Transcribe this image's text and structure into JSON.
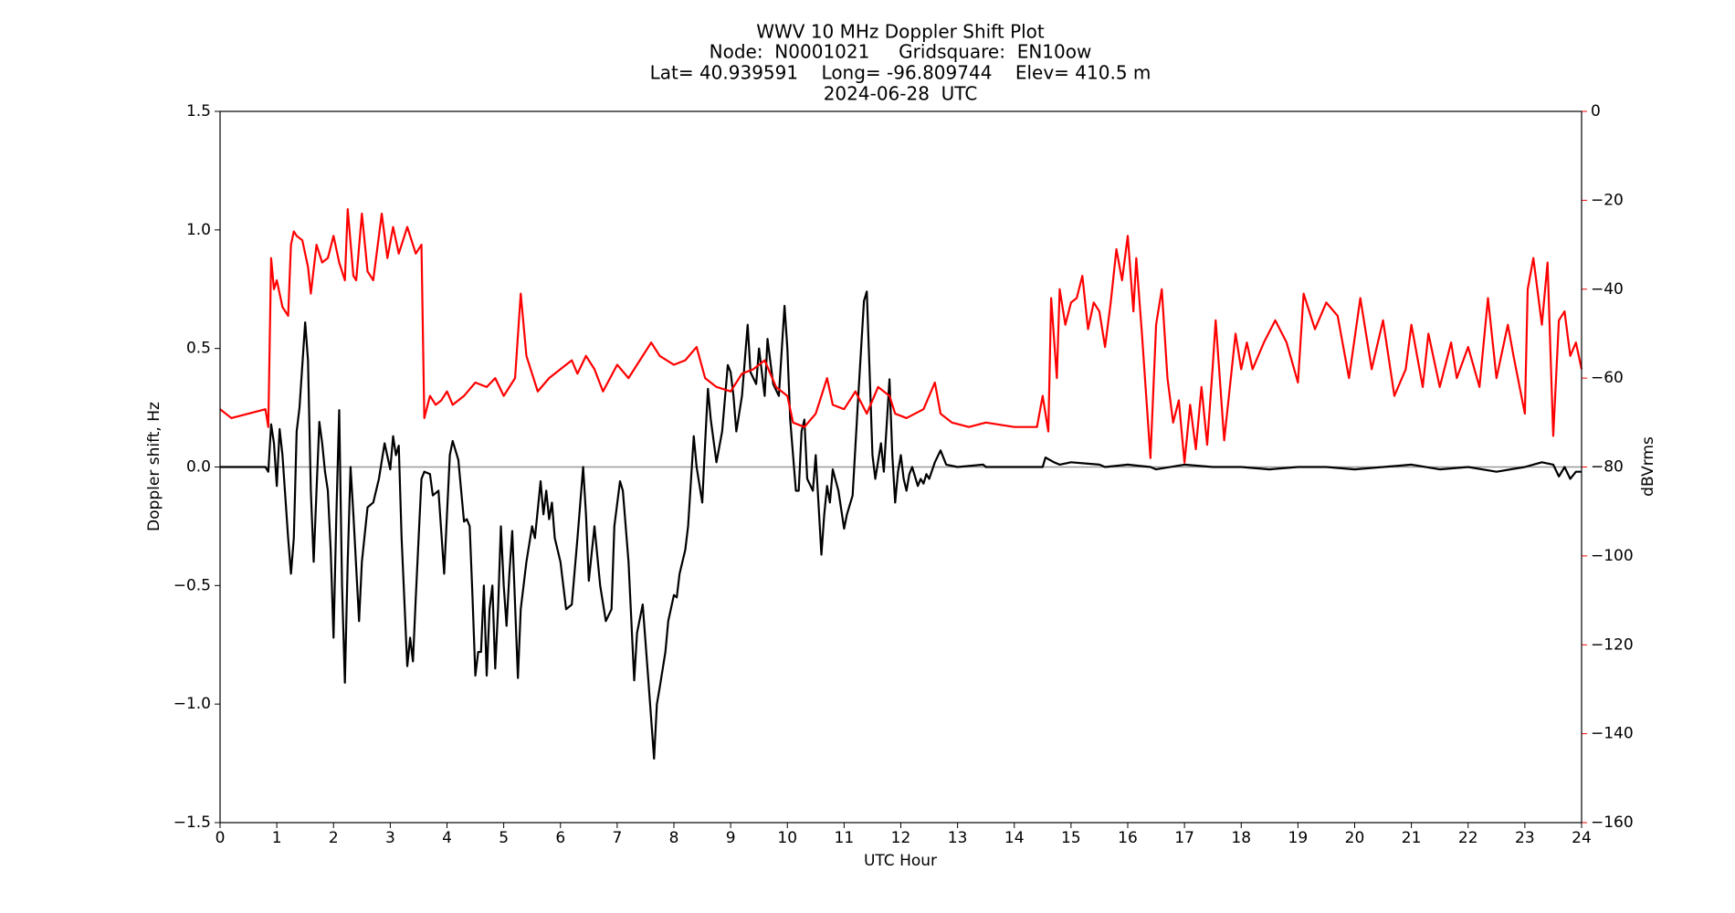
{
  "chart_data": {
    "type": "line",
    "title": [
      "WWV 10 MHz Doppler Shift Plot",
      "Node:  N0001021     Gridsquare:  EN10ow",
      "Lat= 40.939591    Long= -96.809744    Elev= 410.5 m",
      "2024-06-28  UTC"
    ],
    "x_label": "UTC Hour",
    "y_label": "Doppler shift, Hz",
    "y2_label": "dBVrms",
    "y2_color": "#ff0000",
    "reference_line_color": "#999999",
    "xlim": [
      0,
      24
    ],
    "xticks": [
      0,
      1,
      2,
      3,
      4,
      5,
      6,
      7,
      8,
      9,
      10,
      11,
      12,
      13,
      14,
      15,
      16,
      17,
      18,
      19,
      20,
      21,
      22,
      23,
      24
    ],
    "ylim": [
      -1.5,
      1.5
    ],
    "yticks": [
      {
        "value": -1.5,
        "label": "−1.5"
      },
      {
        "value": -1,
        "label": "−1.0"
      },
      {
        "value": -0.5,
        "label": "−0.5"
      },
      {
        "value": 0,
        "label": "0.0"
      },
      0.5,
      {
        "value": 1,
        "label": "1.0"
      },
      1.5
    ],
    "y2lim": [
      -160,
      0
    ],
    "y2ticks": [
      {
        "value": -160,
        "label": "−160"
      },
      {
        "value": -140,
        "label": "−140"
      },
      {
        "value": -120,
        "label": "−120"
      },
      {
        "value": -100,
        "label": "−100"
      },
      {
        "value": -80,
        "label": "−80"
      },
      {
        "value": -60,
        "label": "−60"
      },
      {
        "value": -40,
        "label": "−40"
      },
      {
        "value": -20,
        "label": "−20"
      },
      0
    ],
    "series": [
      {
        "color": "#000000",
        "x": [
          0,
          0.5,
          0.8,
          0.85,
          0.9,
          0.95,
          1.0,
          1.05,
          1.1,
          1.2,
          1.25,
          1.3,
          1.35,
          1.4,
          1.5,
          1.55,
          1.6,
          1.65,
          1.7,
          1.75,
          1.8,
          1.85,
          1.9,
          1.95,
          2.0,
          2.05,
          2.1,
          2.15,
          2.2,
          2.25,
          2.3,
          2.35,
          2.45,
          2.5,
          2.6,
          2.7,
          2.8,
          2.9,
          3.0,
          3.05,
          3.1,
          3.15,
          3.2,
          3.3,
          3.35,
          3.4,
          3.45,
          3.55,
          3.6,
          3.7,
          3.75,
          3.85,
          3.95,
          4.0,
          4.05,
          4.1,
          4.2,
          4.25,
          4.3,
          4.35,
          4.4,
          4.45,
          4.5,
          4.55,
          4.6,
          4.65,
          4.7,
          4.75,
          4.8,
          4.85,
          4.9,
          4.95,
          5.0,
          5.05,
          5.1,
          5.15,
          5.25,
          5.3,
          5.4,
          5.5,
          5.55,
          5.65,
          5.7,
          5.75,
          5.8,
          5.85,
          5.9,
          6.0,
          6.1,
          6.2,
          6.3,
          6.4,
          6.45,
          6.5,
          6.6,
          6.7,
          6.8,
          6.9,
          6.95,
          7.05,
          7.1,
          7.2,
          7.3,
          7.35,
          7.45,
          7.55,
          7.65,
          7.7,
          7.75,
          7.85,
          7.9,
          8.0,
          8.05,
          8.1,
          8.2,
          8.25,
          8.35,
          8.4,
          8.5,
          8.55,
          8.6,
          8.65,
          8.75,
          8.85,
          8.95,
          9.0,
          9.05,
          9.1,
          9.2,
          9.3,
          9.35,
          9.45,
          9.5,
          9.6,
          9.65,
          9.75,
          9.85,
          9.95,
          10.0,
          10.05,
          10.15,
          10.2,
          10.25,
          10.3,
          10.35,
          10.45,
          10.5,
          10.6,
          10.65,
          10.7,
          10.75,
          10.8,
          10.9,
          11.0,
          11.05,
          11.15,
          11.25,
          11.35,
          11.4,
          11.45,
          11.5,
          11.55,
          11.65,
          11.7,
          11.8,
          11.85,
          11.9,
          11.95,
          12.0,
          12.05,
          12.1,
          12.15,
          12.2,
          12.3,
          12.35,
          12.4,
          12.45,
          12.5,
          12.6,
          12.7,
          12.8,
          13.0,
          13.45,
          13.5,
          14.5,
          14.55,
          14.7,
          14.8,
          15,
          15.5,
          15.6,
          16,
          16.4,
          16.5,
          17,
          17.5,
          18,
          18.5,
          19,
          19.5,
          20,
          20.5,
          21,
          21.5,
          22,
          22.5,
          23,
          23.3,
          23.5,
          23.6,
          23.7,
          23.8,
          23.9,
          24
        ],
        "values": [
          0,
          0,
          0,
          -0.02,
          0.18,
          0.1,
          -0.08,
          0.16,
          0.05,
          -0.3,
          -0.45,
          -0.3,
          0.15,
          0.25,
          0.61,
          0.45,
          -0.1,
          -0.4,
          -0.1,
          0.19,
          0.1,
          -0.02,
          -0.1,
          -0.35,
          -0.72,
          -0.2,
          0.24,
          -0.5,
          -0.91,
          -0.4,
          0,
          -0.2,
          -0.65,
          -0.4,
          -0.17,
          -0.15,
          -0.05,
          0.1,
          -0.01,
          0.13,
          0.05,
          0.09,
          -0.3,
          -0.84,
          -0.72,
          -0.82,
          -0.55,
          -0.05,
          -0.02,
          -0.03,
          -0.12,
          -0.1,
          -0.45,
          -0.2,
          0.05,
          0.11,
          0.03,
          -0.1,
          -0.23,
          -0.22,
          -0.25,
          -0.55,
          -0.88,
          -0.78,
          -0.78,
          -0.5,
          -0.88,
          -0.6,
          -0.5,
          -0.85,
          -0.6,
          -0.25,
          -0.5,
          -0.67,
          -0.45,
          -0.27,
          -0.89,
          -0.6,
          -0.4,
          -0.25,
          -0.3,
          -0.06,
          -0.2,
          -0.1,
          -0.22,
          -0.15,
          -0.3,
          -0.4,
          -0.6,
          -0.58,
          -0.3,
          0,
          -0.2,
          -0.48,
          -0.25,
          -0.5,
          -0.65,
          -0.6,
          -0.25,
          -0.06,
          -0.1,
          -0.4,
          -0.9,
          -0.7,
          -0.58,
          -0.9,
          -1.23,
          -1.0,
          -0.93,
          -0.78,
          -0.65,
          -0.54,
          -0.55,
          -0.45,
          -0.35,
          -0.25,
          0.13,
          0,
          -0.15,
          0.1,
          0.33,
          0.2,
          0.02,
          0.15,
          0.43,
          0.4,
          0.3,
          0.15,
          0.3,
          0.6,
          0.4,
          0.35,
          0.5,
          0.3,
          0.54,
          0.35,
          0.3,
          0.68,
          0.5,
          0.2,
          -0.1,
          -0.1,
          0.15,
          0.2,
          -0.05,
          -0.1,
          0.05,
          -0.37,
          -0.2,
          -0.08,
          -0.15,
          -0.01,
          -0.1,
          -0.26,
          -0.2,
          -0.12,
          0.3,
          0.7,
          0.74,
          0.4,
          0.05,
          -0.05,
          0.1,
          -0.02,
          0.37,
          0.05,
          -0.15,
          -0.02,
          0.05,
          -0.05,
          -0.1,
          -0.03,
          0,
          -0.08,
          -0.05,
          -0.07,
          -0.03,
          -0.05,
          0.02,
          0.07,
          0.01,
          0,
          0.01,
          0,
          0,
          0.04,
          0.02,
          0.01,
          0.02,
          0.01,
          0,
          0.01,
          0,
          -0.01,
          0.01,
          0,
          0,
          -0.01,
          0,
          0,
          -0.01,
          0,
          0.01,
          -0.01,
          0,
          -0.02,
          0,
          0.02,
          0.01,
          -0.04,
          0,
          -0.05,
          -0.02,
          -0.02
        ]
      },
      {
        "color": "#ff0000",
        "axis": "y2",
        "x": [
          0,
          0.2,
          0.5,
          0.8,
          0.85,
          0.9,
          0.95,
          1.0,
          1.1,
          1.2,
          1.25,
          1.3,
          1.35,
          1.45,
          1.55,
          1.6,
          1.7,
          1.8,
          1.9,
          2.0,
          2.1,
          2.2,
          2.25,
          2.35,
          2.4,
          2.5,
          2.6,
          2.7,
          2.85,
          2.95,
          3.05,
          3.15,
          3.3,
          3.45,
          3.55,
          3.6,
          3.7,
          3.8,
          3.9,
          4.0,
          4.1,
          4.3,
          4.5,
          4.7,
          4.85,
          5.0,
          5.2,
          5.3,
          5.4,
          5.6,
          5.8,
          6.0,
          6.2,
          6.3,
          6.45,
          6.6,
          6.75,
          7.0,
          7.2,
          7.4,
          7.6,
          7.75,
          8.0,
          8.2,
          8.4,
          8.55,
          8.75,
          9.0,
          9.2,
          9.4,
          9.6,
          9.8,
          10.0,
          10.1,
          10.3,
          10.5,
          10.7,
          10.8,
          11.0,
          11.2,
          11.4,
          11.6,
          11.8,
          11.9,
          12.1,
          12.4,
          12.6,
          12.7,
          12.9,
          13.2,
          13.5,
          14.0,
          14.4,
          14.5,
          14.6,
          14.65,
          14.75,
          14.8,
          14.9,
          15.0,
          15.1,
          15.2,
          15.3,
          15.4,
          15.5,
          15.6,
          15.7,
          15.8,
          15.9,
          16.0,
          16.1,
          16.15,
          16.25,
          16.4,
          16.5,
          16.6,
          16.7,
          16.8,
          16.9,
          17.0,
          17.1,
          17.2,
          17.3,
          17.4,
          17.5,
          17.55,
          17.7,
          17.8,
          17.9,
          18.0,
          18.1,
          18.2,
          18.4,
          18.6,
          18.8,
          19.0,
          19.1,
          19.3,
          19.5,
          19.7,
          19.9,
          20.1,
          20.3,
          20.5,
          20.7,
          20.9,
          21.0,
          21.2,
          21.3,
          21.5,
          21.7,
          21.8,
          22.0,
          22.2,
          22.35,
          22.5,
          22.7,
          22.8,
          23.0,
          23.05,
          23.15,
          23.3,
          23.4,
          23.5,
          23.6,
          23.7,
          23.8,
          23.9,
          24.0
        ],
        "values": [
          -67,
          -69,
          -68,
          -67,
          -71,
          -33,
          -40,
          -38,
          -44,
          -46,
          -30,
          -27,
          -28,
          -29,
          -35,
          -41,
          -30,
          -34,
          -33,
          -28,
          -34,
          -38,
          -22,
          -37,
          -38,
          -23,
          -36,
          -38,
          -23,
          -33,
          -26,
          -32,
          -26,
          -32,
          -30,
          -69,
          -64,
          -66,
          -65,
          -63,
          -66,
          -64,
          -61,
          -62,
          -60,
          -64,
          -60,
          -41,
          -55,
          -63,
          -60,
          -58,
          -56,
          -59,
          -55,
          -58,
          -63,
          -57,
          -60,
          -56,
          -52,
          -55,
          -57,
          -56,
          -53,
          -60,
          -62,
          -63,
          -59,
          -58,
          -56,
          -62,
          -64,
          -70,
          -71,
          -68,
          -60,
          -66,
          -67,
          -63,
          -68,
          -62,
          -64,
          -68,
          -69,
          -67,
          -61,
          -68,
          -70,
          -71,
          -70,
          -71,
          -71,
          -64,
          -72,
          -42,
          -60,
          -40,
          -48,
          -43,
          -42,
          -37,
          -49,
          -43,
          -45,
          -53,
          -43,
          -31,
          -38,
          -28,
          -45,
          -33,
          -50,
          -78,
          -48,
          -40,
          -60,
          -70,
          -65,
          -79,
          -66,
          -76,
          -62,
          -75,
          -57,
          -47,
          -74,
          -62,
          -50,
          -58,
          -52,
          -58,
          -52,
          -47,
          -52,
          -61,
          -41,
          -49,
          -43,
          -46,
          -60,
          -42,
          -58,
          -47,
          -64,
          -58,
          -48,
          -62,
          -50,
          -62,
          -52,
          -60,
          -53,
          -62,
          -42,
          -60,
          -48,
          -55,
          -68,
          -40,
          -33,
          -48,
          -34,
          -73,
          -47,
          -45,
          -55,
          -52,
          -58
        ]
      }
    ]
  }
}
